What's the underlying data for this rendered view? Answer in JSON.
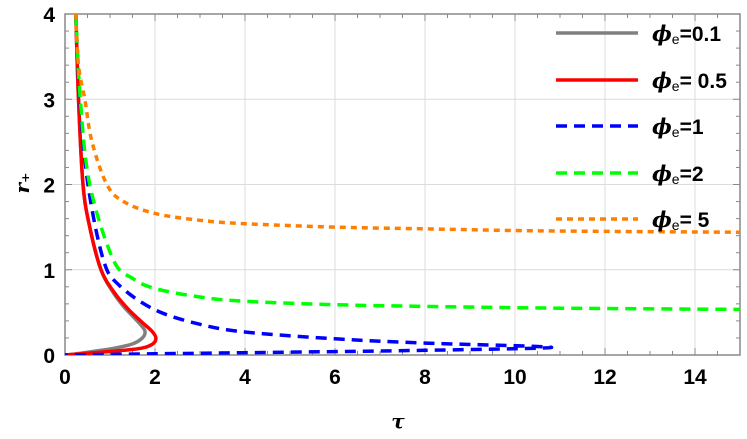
{
  "chart_data": {
    "type": "line",
    "title": "",
    "xlabel": "τ",
    "ylabel": "r₊",
    "xlim": [
      0,
      15
    ],
    "ylim": [
      0,
      4
    ],
    "xticks": [
      "0",
      "2",
      "4",
      "6",
      "8",
      "10",
      "12",
      "14"
    ],
    "yticks": [
      "0",
      "1",
      "2",
      "3",
      "4"
    ],
    "grid": true,
    "legend_position": "top-right",
    "series": [
      {
        "name": "ϕe=0.1",
        "legend_symbol": "ϕ",
        "legend_sub": "e",
        "legend_value": "=0.1",
        "color": "#808080",
        "style": "solid",
        "x": [
          0.24,
          0.3,
          0.4,
          0.55,
          0.8,
          1.05,
          1.3,
          1.55,
          1.72,
          1.78,
          1.72,
          1.5,
          1.1,
          0.6,
          0.2,
          0
        ],
        "y": [
          4,
          3,
          2,
          1.5,
          1.0,
          0.75,
          0.57,
          0.43,
          0.33,
          0.27,
          0.2,
          0.13,
          0.08,
          0.04,
          0.01,
          0
        ]
      },
      {
        "name": "ϕe= 0.5",
        "legend_symbol": "ϕ",
        "legend_sub": "e",
        "legend_value": "= 0.5",
        "color": "#ff0000",
        "style": "solid",
        "x": [
          0.24,
          0.3,
          0.4,
          0.55,
          0.8,
          1.1,
          1.4,
          1.7,
          1.93,
          2.02,
          1.95,
          1.7,
          1.2,
          0.6,
          0.2,
          0
        ],
        "y": [
          4,
          3,
          2,
          1.5,
          1.0,
          0.73,
          0.54,
          0.39,
          0.28,
          0.2,
          0.13,
          0.08,
          0.05,
          0.025,
          0.008,
          0
        ]
      },
      {
        "name": "ϕe=1",
        "legend_symbol": "ϕ",
        "legend_sub": "e",
        "legend_value": "=1",
        "color": "#0000ff",
        "style": "dashed",
        "x": [
          0.24,
          0.33,
          0.51,
          0.85,
          1.2,
          2,
          3,
          4,
          6,
          8,
          10.5,
          10.5,
          8,
          6,
          4,
          2,
          0
        ],
        "y": [
          4,
          3,
          2,
          1.12,
          0.82,
          0.53,
          0.36,
          0.27,
          0.19,
          0.14,
          0.1,
          0.08,
          0.055,
          0.04,
          0.027,
          0.014,
          0
        ]
      },
      {
        "name": "ϕe=2",
        "legend_symbol": "ϕ",
        "legend_sub": "e",
        "legend_value": "=2",
        "color": "#00ff00",
        "style": "dashed",
        "x": [
          0.24,
          0.34,
          0.55,
          1.07,
          1.5,
          2,
          3,
          4,
          6,
          8,
          10,
          12,
          15
        ],
        "y": [
          4,
          3,
          2,
          1.12,
          0.9,
          0.78,
          0.68,
          0.63,
          0.59,
          0.57,
          0.555,
          0.545,
          0.535
        ]
      },
      {
        "name": "ϕe= 5",
        "legend_symbol": "ϕ",
        "legend_sub": "e",
        "legend_value": "= 5",
        "color": "#ff8000",
        "style": "dotted",
        "x": [
          0.24,
          0.3,
          0.44,
          0.6,
          0.93,
          1.3,
          2,
          3,
          4,
          6,
          8,
          10,
          12,
          15
        ],
        "y": [
          4,
          3.4,
          3,
          2.5,
          2,
          1.8,
          1.66,
          1.58,
          1.54,
          1.5,
          1.48,
          1.46,
          1.45,
          1.44
        ]
      }
    ]
  }
}
